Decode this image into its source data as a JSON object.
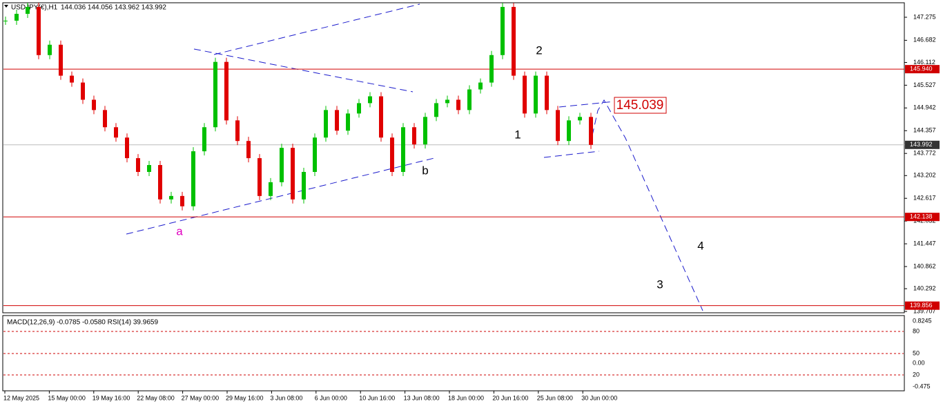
{
  "chart_data": {
    "type": "candlestick",
    "title": "USDJPY(€),H1",
    "ohlc_text": "144.036 144.056 143.962 143.992",
    "ylim": [
      139.69,
      147.63
    ],
    "yticks": [
      147.275,
      146.682,
      146.112,
      145.527,
      144.942,
      144.357,
      143.772,
      143.202,
      142.617,
      142.032,
      141.447,
      140.862,
      140.292,
      139.707
    ],
    "categories": [
      "12 May 2025",
      "15 May 00:00",
      "19 May 16:00",
      "22 May 08:00",
      "27 May 00:00",
      "29 May 16:00",
      "3 Jun 08:00",
      "6 Jun 00:00",
      "10 Jun 16:00",
      "13 Jun 08:00",
      "18 Jun 00:00",
      "20 Jun 16:00",
      "25 Jun 08:00",
      "30 Jun 00:00"
    ],
    "up_color": "#00c000",
    "down_color": "#e00000",
    "price": [
      147.187,
      147.363,
      147.54,
      146.302,
      146.568,
      145.772,
      145.595,
      145.153,
      144.888,
      144.446,
      144.18,
      143.65,
      143.296,
      143.473,
      142.589,
      142.677,
      142.412,
      143.827,
      144.446,
      146.126,
      144.622,
      144.092,
      143.65,
      142.677,
      143.031,
      143.915,
      142.589,
      143.296,
      144.18,
      144.888,
      144.357,
      144.799,
      145.065,
      145.241,
      144.18,
      143.296,
      144.446,
      144.004,
      144.711,
      145.065,
      145.153,
      144.888,
      145.418,
      145.595,
      146.302,
      147.54,
      145.772,
      144.799,
      145.772,
      144.888,
      144.092,
      144.622,
      144.711,
      143.992
    ],
    "levels": [
      {
        "value": 145.94,
        "label": "145.940",
        "color": "#d00000"
      },
      {
        "value": 143.992,
        "label": "143.992",
        "color": "#333333"
      },
      {
        "value": 142.138,
        "label": "142.138",
        "color": "#d00000"
      },
      {
        "value": 139.856,
        "label": "139.856",
        "color": "#d00000"
      }
    ],
    "target": "145.039",
    "waves": [
      "a",
      "b",
      "1",
      "2",
      "3",
      "4"
    ],
    "indicator": {
      "header": "MACD(12,26,9) -0.0785 -0.0580  RSI(14) 39.9659",
      "ticks": [
        "0.8245",
        "80",
        "50",
        "0.00",
        "20",
        "-0.475"
      ]
    }
  }
}
